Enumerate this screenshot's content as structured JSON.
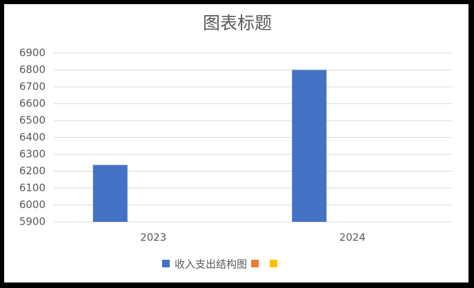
{
  "chart_data": {
    "type": "bar",
    "title": "图表标题",
    "categories": [
      "2023",
      "2024"
    ],
    "series": [
      {
        "name": "收入支出结构图",
        "color": "#4472c4",
        "values": [
          6237,
          6800
        ]
      },
      {
        "color": "#ed7d31",
        "values": [
          null,
          null
        ]
      },
      {
        "color": "#ffc000",
        "values": [
          null,
          null
        ]
      }
    ],
    "ylim": [
      5900,
      6900
    ],
    "yticks": [
      5900,
      6000,
      6100,
      6200,
      6300,
      6400,
      6500,
      6600,
      6700,
      6800,
      6900
    ],
    "grid": true,
    "legend": "bottom"
  }
}
